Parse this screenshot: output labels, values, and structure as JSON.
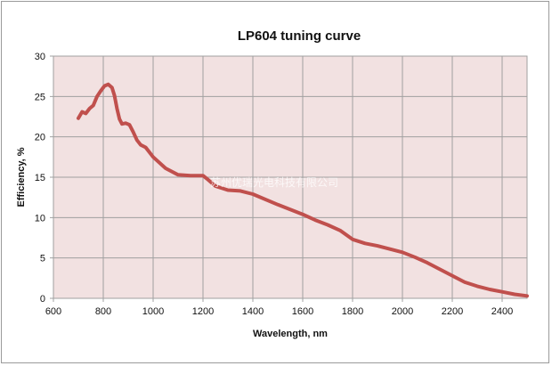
{
  "chart_data": {
    "type": "line",
    "title": "LP604 tuning curve",
    "xlabel": "Wavelength, nm",
    "ylabel": "Efficiency, %",
    "xlim": [
      600,
      2500
    ],
    "ylim": [
      0,
      30
    ],
    "x_ticks": [
      600,
      800,
      1000,
      1200,
      1400,
      1600,
      1800,
      2000,
      2200,
      2400
    ],
    "y_ticks": [
      0,
      5,
      10,
      15,
      20,
      25,
      30
    ],
    "grid": true,
    "legend": "none",
    "colors": {
      "line": "#c0504d",
      "plot_bg": "#f2e1e1",
      "grid": "#a0a0a0"
    },
    "watermark": "苏州优瑞光电科技有限公司",
    "series": [
      {
        "x": [
          700,
          715,
          730,
          745,
          760,
          775,
          790,
          805,
          820,
          835,
          845,
          855,
          865,
          875,
          890,
          905,
          920,
          935,
          950,
          970,
          1000,
          1050,
          1100,
          1150,
          1200,
          1220,
          1250,
          1300,
          1350,
          1400,
          1500,
          1600,
          1650,
          1700,
          1750,
          1800,
          1850,
          1900,
          1950,
          2000,
          2050,
          2100,
          2150,
          2200,
          2250,
          2300,
          2350,
          2400,
          2450,
          2500
        ],
        "y": [
          22.3,
          23.1,
          22.9,
          23.5,
          23.9,
          25.0,
          25.7,
          26.3,
          26.5,
          26.1,
          25.1,
          23.5,
          22.2,
          21.6,
          21.7,
          21.5,
          20.6,
          19.6,
          19.0,
          18.7,
          17.5,
          16.1,
          15.3,
          15.2,
          15.2,
          14.7,
          13.9,
          13.4,
          13.3,
          12.9,
          11.6,
          10.4,
          9.7,
          9.1,
          8.4,
          7.3,
          6.8,
          6.5,
          6.1,
          5.7,
          5.1,
          4.4,
          3.6,
          2.8,
          2.0,
          1.5,
          1.1,
          0.8,
          0.5,
          0.3
        ]
      }
    ]
  }
}
